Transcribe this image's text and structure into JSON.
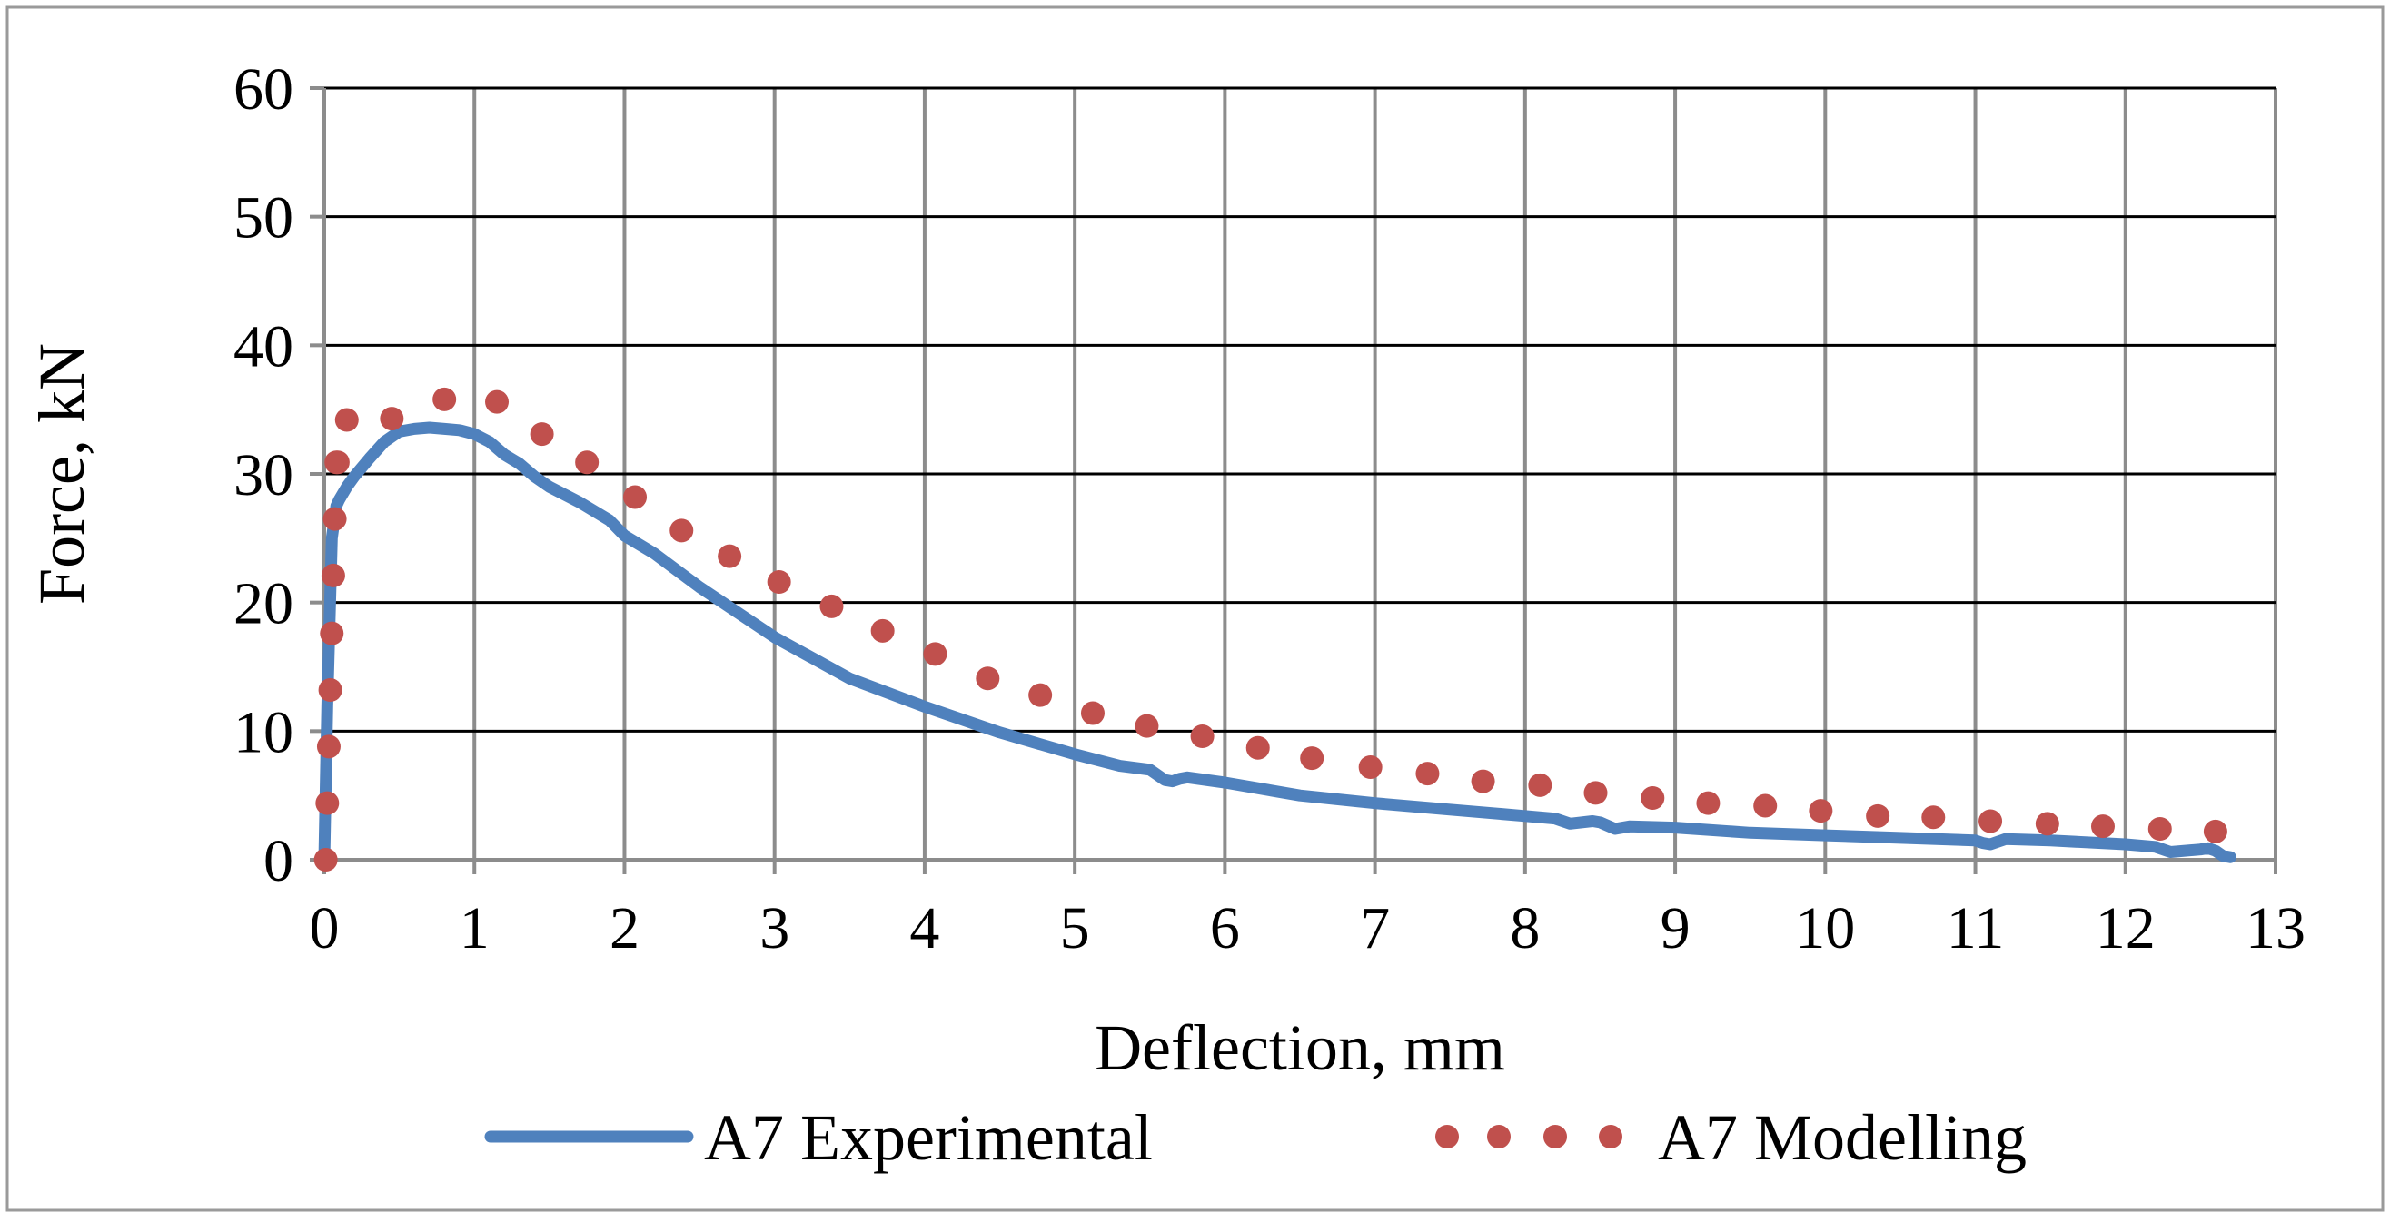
{
  "chart_data": {
    "type": "line",
    "title": "",
    "xlabel": "Deflection, mm",
    "ylabel": "Force, kN",
    "xlim": [
      0,
      13
    ],
    "ylim": [
      0,
      60
    ],
    "xticks": [
      0,
      1,
      2,
      3,
      4,
      5,
      6,
      7,
      8,
      9,
      10,
      11,
      12,
      13
    ],
    "yticks": [
      0,
      10,
      20,
      30,
      40,
      50,
      60
    ],
    "grid": true,
    "legend_position": "bottom",
    "series": [
      {
        "name": "A7 Experimental",
        "style": "solid-line",
        "color": "#4f81bd",
        "x": [
          0,
          0.02,
          0.05,
          0.08,
          0.1,
          0.15,
          0.2,
          0.3,
          0.4,
          0.5,
          0.6,
          0.7,
          0.8,
          0.9,
          1.0,
          1.1,
          1.2,
          1.3,
          1.4,
          1.5,
          1.7,
          1.9,
          2.0,
          2.2,
          2.5,
          3.0,
          3.5,
          4.0,
          4.5,
          5.0,
          5.3,
          5.5,
          5.6,
          5.65,
          5.7,
          5.75,
          6.0,
          6.5,
          7.0,
          7.5,
          8.0,
          8.2,
          8.3,
          8.45,
          8.5,
          8.6,
          8.7,
          9.0,
          9.5,
          10.0,
          10.5,
          11.0,
          11.05,
          11.1,
          11.2,
          11.5,
          12.0,
          12.2,
          12.3,
          12.5,
          12.55,
          12.6,
          12.65,
          12.7
        ],
        "y": [
          0,
          12,
          25,
          27.5,
          28,
          29,
          29.8,
          31.2,
          32.5,
          33.3,
          33.5,
          33.6,
          33.5,
          33.4,
          33.1,
          32.5,
          31.5,
          30.8,
          29.8,
          29,
          27.8,
          26.4,
          25.2,
          23.8,
          21.2,
          17.3,
          14.1,
          11.9,
          9.9,
          8.2,
          7.3,
          7.0,
          6.2,
          6.1,
          6.3,
          6.4,
          6.0,
          5.0,
          4.4,
          3.9,
          3.4,
          3.2,
          2.8,
          3.0,
          2.9,
          2.4,
          2.6,
          2.5,
          2.1,
          1.9,
          1.7,
          1.5,
          1.3,
          1.2,
          1.6,
          1.5,
          1.2,
          1.0,
          0.6,
          0.8,
          0.9,
          0.7,
          0.3,
          0.2
        ]
      },
      {
        "name": "A7 Modelling",
        "style": "dots",
        "color": "#c0504d",
        "x": [
          0.01,
          0.02,
          0.03,
          0.04,
          0.05,
          0.06,
          0.07,
          0.08,
          0.09,
          0.15,
          0.45,
          0.8,
          1.15,
          1.45,
          1.75,
          2.07,
          2.38,
          2.7,
          3.03,
          3.38,
          3.72,
          4.07,
          4.42,
          4.77,
          5.12,
          5.48,
          5.85,
          6.22,
          6.58,
          6.97,
          7.35,
          7.72,
          8.1,
          8.47,
          8.85,
          9.22,
          9.6,
          9.97,
          10.35,
          10.72,
          11.1,
          11.48,
          11.85,
          12.23,
          12.6
        ],
        "y": [
          0,
          4.4,
          8.8,
          13.2,
          17.6,
          22.1,
          26.5,
          30.9,
          30.9,
          34.2,
          34.3,
          35.8,
          35.6,
          33.1,
          30.9,
          28.2,
          25.6,
          23.6,
          21.6,
          19.7,
          17.8,
          16.0,
          14.1,
          12.8,
          11.4,
          10.4,
          9.6,
          8.7,
          7.9,
          7.2,
          6.7,
          6.1,
          5.8,
          5.2,
          4.8,
          4.4,
          4.2,
          3.8,
          3.4,
          3.3,
          3.0,
          2.8,
          2.6,
          2.4,
          2.2
        ]
      }
    ]
  }
}
